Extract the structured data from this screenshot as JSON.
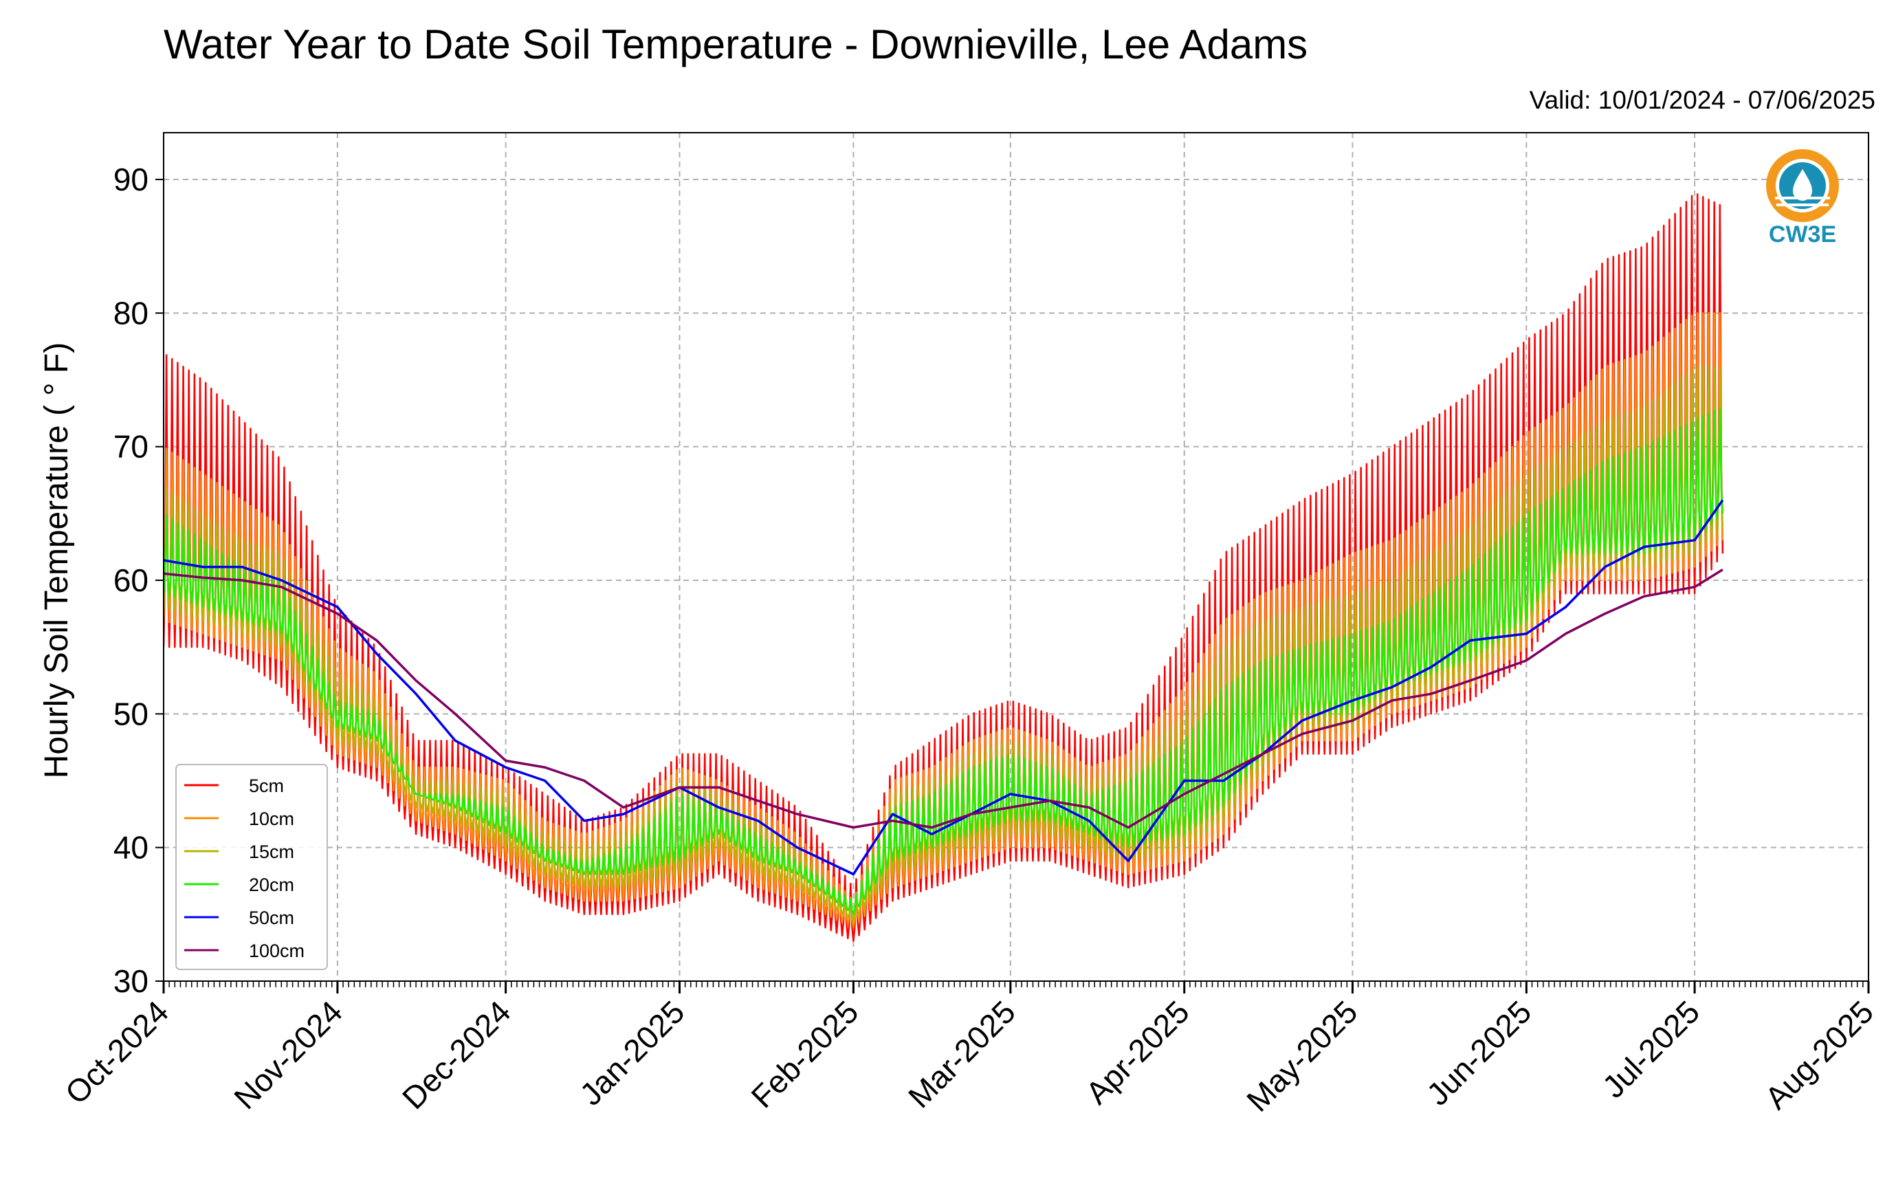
{
  "chart_data": {
    "type": "line",
    "title": "Water Year to Date Soil Temperature - Downieville, Lee Adams",
    "subtitle": "Valid: 10/01/2024 - 07/06/2025",
    "xlabel": "",
    "ylabel": "Hourly Soil Temperature ( ° F)",
    "ylim": [
      30,
      93.5
    ],
    "xlim": [
      "2024-10-01",
      "2025-08-01"
    ],
    "y_ticks": [
      30,
      40,
      50,
      60,
      70,
      80,
      90
    ],
    "x_ticks": [
      "Oct-2024",
      "Nov-2024",
      "Dec-2024",
      "Jan-2025",
      "Feb-2025",
      "Mar-2025",
      "Apr-2025",
      "May-2025",
      "Jun-2025",
      "Jul-2025",
      "Aug-2025"
    ],
    "x_tick_dates": [
      "2024-10-01",
      "2024-11-01",
      "2024-12-01",
      "2025-01-01",
      "2025-02-01",
      "2025-03-01",
      "2025-04-01",
      "2025-05-01",
      "2025-06-01",
      "2025-07-01",
      "2025-08-01"
    ],
    "grid": true,
    "legend_position": "lower-left",
    "logo_text": "CW3E",
    "series": [
      {
        "name": "5cm",
        "color": "#ff0000",
        "x": [
          "2024-10-01",
          "2024-10-08",
          "2024-10-15",
          "2024-10-22",
          "2024-11-01",
          "2024-11-08",
          "2024-11-15",
          "2024-11-22",
          "2024-12-01",
          "2024-12-08",
          "2024-12-15",
          "2024-12-22",
          "2025-01-01",
          "2025-01-08",
          "2025-01-15",
          "2025-01-22",
          "2025-02-01",
          "2025-02-08",
          "2025-02-15",
          "2025-02-22",
          "2025-03-01",
          "2025-03-08",
          "2025-03-15",
          "2025-03-22",
          "2025-04-01",
          "2025-04-08",
          "2025-04-15",
          "2025-04-22",
          "2025-05-01",
          "2025-05-08",
          "2025-05-15",
          "2025-05-22",
          "2025-06-01",
          "2025-06-08",
          "2025-06-15",
          "2025-06-22",
          "2025-07-01",
          "2025-07-06"
        ],
        "min": [
          55,
          55,
          54,
          52,
          46,
          45,
          41,
          40,
          38,
          36,
          35,
          35,
          36,
          38,
          36,
          35,
          33,
          36,
          37,
          38,
          39,
          39,
          38,
          37,
          38,
          40,
          44,
          47,
          47,
          49,
          50,
          51,
          54,
          59,
          59,
          59,
          59,
          62
        ],
        "max": [
          77,
          75,
          72,
          69,
          58,
          55,
          48,
          48,
          46,
          44,
          42,
          43,
          47,
          47,
          45,
          43,
          37,
          46,
          48,
          50,
          51,
          50,
          48,
          49,
          56,
          62,
          64,
          66,
          68,
          70,
          72,
          74,
          78,
          80,
          84,
          85,
          89,
          88
        ]
      },
      {
        "name": "10cm",
        "color": "#ff8c00",
        "x": [
          "2024-10-01",
          "2024-10-08",
          "2024-10-15",
          "2024-10-22",
          "2024-11-01",
          "2024-11-08",
          "2024-11-15",
          "2024-11-22",
          "2024-12-01",
          "2024-12-08",
          "2024-12-15",
          "2024-12-22",
          "2025-01-01",
          "2025-01-08",
          "2025-01-15",
          "2025-01-22",
          "2025-02-01",
          "2025-02-08",
          "2025-02-15",
          "2025-02-22",
          "2025-03-01",
          "2025-03-08",
          "2025-03-15",
          "2025-03-22",
          "2025-04-01",
          "2025-04-08",
          "2025-04-15",
          "2025-04-22",
          "2025-05-01",
          "2025-05-08",
          "2025-05-15",
          "2025-05-22",
          "2025-06-01",
          "2025-06-08",
          "2025-06-15",
          "2025-06-22",
          "2025-07-01",
          "2025-07-06"
        ],
        "min": [
          57,
          56,
          55,
          54,
          47,
          46,
          42,
          41,
          39,
          37,
          36,
          36,
          37,
          39,
          37,
          36,
          34,
          37,
          38,
          39,
          40,
          40,
          39,
          38,
          39,
          41,
          45,
          48,
          48,
          50,
          51,
          52,
          55,
          60,
          60,
          60,
          61,
          63
        ],
        "max": [
          70,
          68,
          66,
          64,
          55,
          53,
          46,
          46,
          45,
          42,
          41,
          42,
          46,
          45,
          43,
          41,
          36,
          45,
          46,
          48,
          49,
          48,
          46,
          47,
          52,
          57,
          59,
          60,
          62,
          63,
          65,
          67,
          71,
          73,
          76,
          77,
          80,
          80
        ]
      },
      {
        "name": "15cm",
        "color": "#b5b500",
        "x": [
          "2024-10-01",
          "2024-10-08",
          "2024-10-15",
          "2024-10-22",
          "2024-11-01",
          "2024-11-08",
          "2024-11-15",
          "2024-11-22",
          "2024-12-01",
          "2024-12-08",
          "2024-12-15",
          "2024-12-22",
          "2025-01-01",
          "2025-01-08",
          "2025-01-15",
          "2025-01-22",
          "2025-02-01",
          "2025-02-08",
          "2025-02-15",
          "2025-02-22",
          "2025-03-01",
          "2025-03-08",
          "2025-03-15",
          "2025-03-22",
          "2025-04-01",
          "2025-04-08",
          "2025-04-15",
          "2025-04-22",
          "2025-05-01",
          "2025-05-08",
          "2025-05-15",
          "2025-05-22",
          "2025-06-01",
          "2025-06-08",
          "2025-06-15",
          "2025-06-22",
          "2025-07-01",
          "2025-07-06"
        ],
        "min": [
          58,
          57,
          56,
          55,
          48,
          47,
          43,
          42,
          40,
          38,
          37,
          37,
          38,
          40,
          38,
          37,
          34.5,
          38,
          39,
          40,
          41,
          41,
          40,
          39,
          40,
          42,
          46,
          49,
          49,
          51,
          52,
          53,
          56,
          61,
          61,
          61,
          62,
          64
        ],
        "max": [
          67,
          65,
          63,
          62,
          53,
          51,
          45,
          45,
          44,
          41,
          40,
          41,
          45,
          44,
          42,
          40,
          35.5,
          44,
          45,
          47,
          48,
          47,
          45,
          46,
          50,
          55,
          57,
          58,
          59,
          60,
          62,
          64,
          68,
          70,
          72,
          73,
          76,
          76
        ]
      },
      {
        "name": "20cm",
        "color": "#22ee00",
        "x": [
          "2024-10-01",
          "2024-10-08",
          "2024-10-15",
          "2024-10-22",
          "2024-11-01",
          "2024-11-08",
          "2024-11-15",
          "2024-11-22",
          "2024-12-01",
          "2024-12-08",
          "2024-12-15",
          "2024-12-22",
          "2025-01-01",
          "2025-01-08",
          "2025-01-15",
          "2025-01-22",
          "2025-02-01",
          "2025-02-08",
          "2025-02-15",
          "2025-02-22",
          "2025-03-01",
          "2025-03-08",
          "2025-03-15",
          "2025-03-22",
          "2025-04-01",
          "2025-04-08",
          "2025-04-15",
          "2025-04-22",
          "2025-05-01",
          "2025-05-08",
          "2025-05-15",
          "2025-05-22",
          "2025-06-01",
          "2025-06-08",
          "2025-06-15",
          "2025-06-22",
          "2025-07-01",
          "2025-07-06"
        ],
        "min": [
          59,
          58,
          57,
          56,
          49,
          48,
          44,
          43,
          41,
          39,
          38,
          38,
          39,
          41,
          39,
          38,
          35,
          39,
          40,
          41,
          42,
          42,
          41,
          40,
          41,
          43,
          47,
          50,
          50,
          52,
          53,
          54,
          57,
          62,
          62,
          62,
          63,
          65
        ],
        "max": [
          65,
          63,
          61,
          60,
          51,
          50,
          44,
          44,
          43,
          40,
          39,
          40,
          44,
          43,
          41,
          39,
          36,
          43,
          44,
          46,
          47,
          46,
          44,
          45,
          48,
          52,
          54,
          55,
          56,
          57,
          59,
          61,
          65,
          67,
          69,
          70,
          72,
          73
        ]
      },
      {
        "name": "50cm",
        "color": "#0000ee",
        "x": [
          "2024-10-01",
          "2024-10-08",
          "2024-10-15",
          "2024-10-22",
          "2024-11-01",
          "2024-11-08",
          "2024-11-15",
          "2024-11-22",
          "2024-12-01",
          "2024-12-08",
          "2024-12-15",
          "2024-12-22",
          "2025-01-01",
          "2025-01-08",
          "2025-01-15",
          "2025-01-22",
          "2025-02-01",
          "2025-02-08",
          "2025-02-15",
          "2025-02-22",
          "2025-03-01",
          "2025-03-08",
          "2025-03-15",
          "2025-03-22",
          "2025-04-01",
          "2025-04-08",
          "2025-04-15",
          "2025-04-22",
          "2025-05-01",
          "2025-05-08",
          "2025-05-15",
          "2025-05-22",
          "2025-06-01",
          "2025-06-08",
          "2025-06-15",
          "2025-06-22",
          "2025-07-01",
          "2025-07-06"
        ],
        "values": [
          61.5,
          61,
          61,
          60,
          58,
          54.5,
          51.5,
          48,
          46,
          45,
          42,
          42.5,
          44.5,
          43,
          42,
          40,
          38,
          42.5,
          41,
          42.5,
          44,
          43.5,
          42,
          39,
          45,
          45,
          47,
          49.5,
          51,
          52,
          53.5,
          55.5,
          56,
          58,
          61,
          62.5,
          63,
          66
        ]
      },
      {
        "name": "100cm",
        "color": "#800060",
        "x": [
          "2024-10-01",
          "2024-10-08",
          "2024-10-15",
          "2024-10-22",
          "2024-11-01",
          "2024-11-08",
          "2024-11-15",
          "2024-11-22",
          "2024-12-01",
          "2024-12-08",
          "2024-12-15",
          "2024-12-22",
          "2025-01-01",
          "2025-01-08",
          "2025-01-15",
          "2025-01-22",
          "2025-02-01",
          "2025-02-08",
          "2025-02-15",
          "2025-02-22",
          "2025-03-01",
          "2025-03-08",
          "2025-03-15",
          "2025-03-22",
          "2025-04-01",
          "2025-04-08",
          "2025-04-15",
          "2025-04-22",
          "2025-05-01",
          "2025-05-08",
          "2025-05-15",
          "2025-05-22",
          "2025-06-01",
          "2025-06-08",
          "2025-06-15",
          "2025-06-22",
          "2025-07-01",
          "2025-07-06"
        ],
        "values": [
          60.5,
          60.2,
          60,
          59.5,
          57.5,
          55.5,
          52.5,
          50,
          46.5,
          46,
          45,
          43,
          44.5,
          44.5,
          43.5,
          42.5,
          41.5,
          42,
          41.5,
          42.5,
          43,
          43.5,
          43,
          41.5,
          44,
          45.5,
          47,
          48.5,
          49.5,
          51,
          51.5,
          52.5,
          54,
          56,
          57.5,
          58.8,
          59.5,
          60.8
        ]
      }
    ]
  }
}
